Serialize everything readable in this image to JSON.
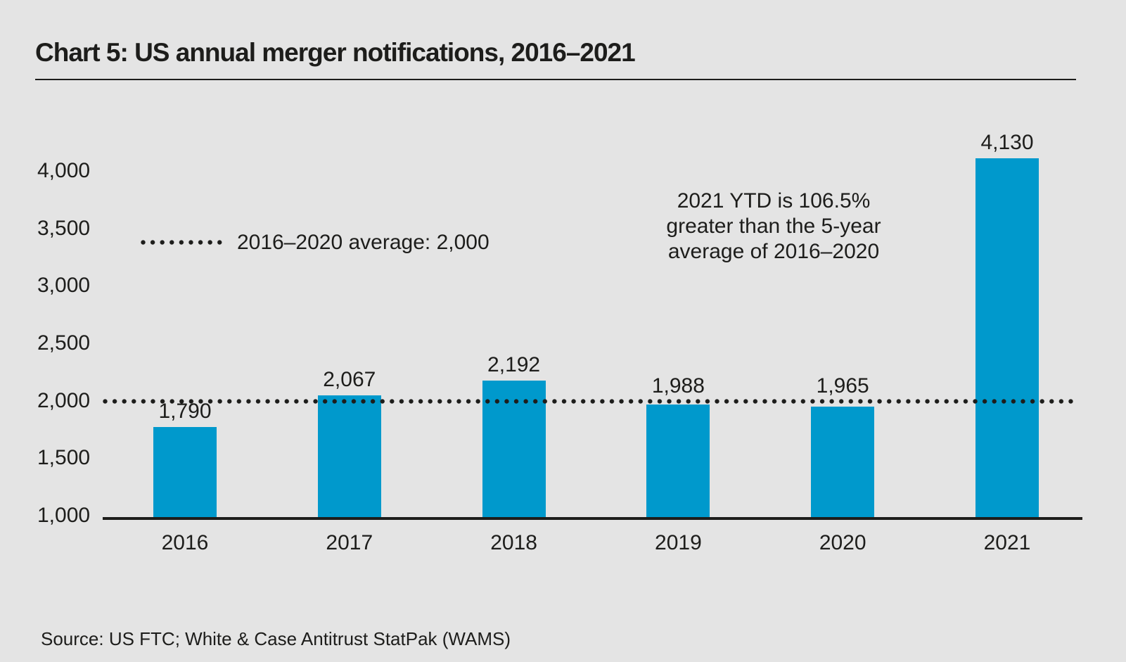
{
  "page": {
    "background_color": "#e4e4e4",
    "text_color": "#1d1d1b"
  },
  "header": {
    "title": "Chart 5: US annual merger notifications, 2016–2021"
  },
  "chart_data": {
    "type": "bar",
    "title": "Chart 5: US annual merger notifications, 2016–2021",
    "categories": [
      "2016",
      "2017",
      "2018",
      "2019",
      "2020",
      "2021"
    ],
    "values": [
      1790,
      2067,
      2192,
      1988,
      1965,
      4130
    ],
    "value_labels": [
      "1,790",
      "2,067",
      "2,192",
      "1,988",
      "1,965",
      "4,130"
    ],
    "xlabel": "",
    "ylabel": "",
    "ylim": [
      1000,
      4250
    ],
    "yticks": [
      1000,
      1500,
      2000,
      2500,
      3000,
      3500,
      4000
    ],
    "ytick_labels": [
      "1,000",
      "1,500",
      "2,000",
      "2,500",
      "3,000",
      "3,500",
      "4,000"
    ],
    "grid": false,
    "bar_color": "#0099cc",
    "axis_color": "#1d1d1b",
    "reference_line": {
      "value": 2000,
      "style": "dotted",
      "color": "#1d1d1b",
      "legend_label": "2016–2020 average: 2,000",
      "legend_position": "inside-upper-left"
    },
    "annotation": {
      "lines": [
        "2021 YTD is 106.5%",
        "greater than the 5-year",
        "average of 2016–2020"
      ]
    }
  },
  "footer": {
    "source": "Source: US FTC; White & Case Antitrust StatPak (WAMS)"
  }
}
